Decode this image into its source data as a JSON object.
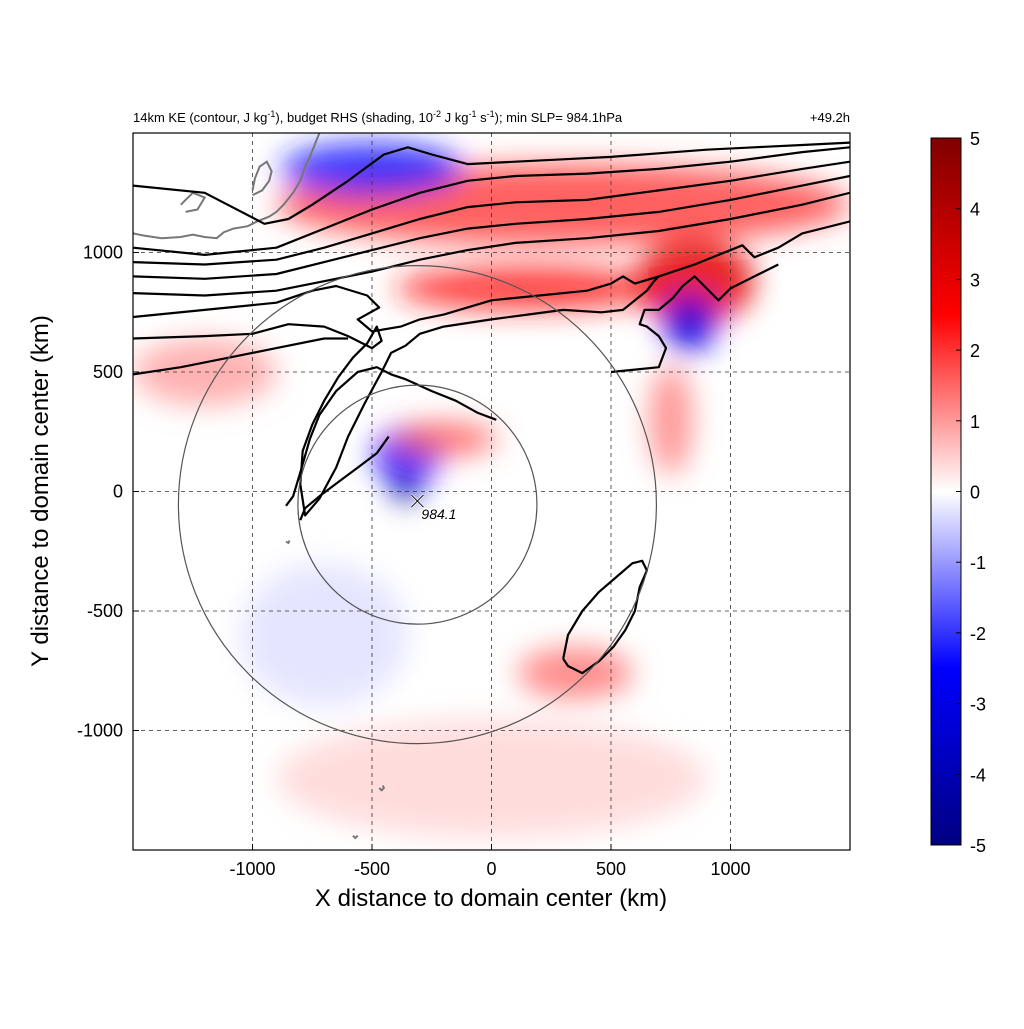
{
  "chart_data": {
    "type": "heatmap",
    "title_parts": {
      "a": "14km KE (contour, J kg",
      "a_sup": "-1",
      "b": "), budget RHS (shading, 10",
      "b_sup": "-2",
      "c": " J kg",
      "c_sup": "-1",
      "d": " s",
      "d_sup": "-1",
      "e": "); min SLP= 984.1hPa"
    },
    "time_label": "+49.2h",
    "xlabel": "X distance to domain center (km)",
    "ylabel": "Y distance to domain center (km)",
    "xlim": [
      -1500,
      1500
    ],
    "ylim": [
      -1500,
      1500
    ],
    "xticks": [
      -1000,
      -500,
      0,
      500,
      1000
    ],
    "yticks": [
      -1000,
      -500,
      0,
      500,
      1000
    ],
    "grid": true,
    "colorbar": {
      "range": [
        -5,
        5
      ],
      "ticks": [
        -5,
        -4,
        -3,
        -2,
        -1,
        0,
        1,
        2,
        3,
        4,
        5
      ],
      "colors": [
        "#000080",
        "#0000ff",
        "#ffffff",
        "#ff0000",
        "#800000"
      ]
    },
    "center_marker": {
      "x": -310,
      "y": -40,
      "label": "984.1"
    },
    "range_rings": [
      {
        "cx": -310,
        "cy": -55,
        "r": 500
      },
      {
        "cx": -310,
        "cy": -55,
        "r": 1000
      }
    ],
    "shading_features": [
      {
        "x": 300,
        "y": 1200,
        "rx": 1200,
        "ry": 170,
        "v": 1.8
      },
      {
        "x": -500,
        "y": 1350,
        "rx": 380,
        "ry": 110,
        "v": -2.2
      },
      {
        "x": 150,
        "y": 850,
        "rx": 550,
        "ry": 90,
        "v": 2.2
      },
      {
        "x": 850,
        "y": 880,
        "rx": 250,
        "ry": 180,
        "v": 3.0
      },
      {
        "x": 830,
        "y": 700,
        "rx": 110,
        "ry": 120,
        "v": -3.0
      },
      {
        "x": -350,
        "y": 150,
        "rx": 140,
        "ry": 120,
        "v": -2.5
      },
      {
        "x": -200,
        "y": 220,
        "rx": 220,
        "ry": 70,
        "v": 1.6
      },
      {
        "x": -360,
        "y": 10,
        "rx": 55,
        "ry": 55,
        "v": -4.5
      },
      {
        "x": 350,
        "y": -760,
        "rx": 240,
        "ry": 110,
        "v": 1.3
      },
      {
        "x": 750,
        "y": 300,
        "rx": 90,
        "ry": 230,
        "v": 1.2
      },
      {
        "x": -1200,
        "y": 500,
        "rx": 300,
        "ry": 140,
        "v": 0.9
      },
      {
        "x": 0,
        "y": -1200,
        "rx": 900,
        "ry": 250,
        "v": 0.4
      },
      {
        "x": -700,
        "y": -600,
        "rx": 350,
        "ry": 300,
        "v": -0.3
      }
    ],
    "contours": [
      [
        [
          -1500,
          1280
        ],
        [
          -1200,
          1250
        ],
        [
          -950,
          1120
        ],
        [
          -850,
          1140
        ],
        [
          -750,
          1200
        ],
        [
          -600,
          1300
        ],
        [
          -450,
          1410
        ],
        [
          -350,
          1440
        ],
        [
          -250,
          1410
        ],
        [
          -100,
          1370
        ],
        [
          100,
          1380
        ],
        [
          300,
          1390
        ],
        [
          500,
          1400
        ],
        [
          700,
          1415
        ],
        [
          900,
          1430
        ],
        [
          1100,
          1440
        ],
        [
          1300,
          1450
        ],
        [
          1500,
          1460
        ]
      ],
      [
        [
          -1500,
          1020
        ],
        [
          -1200,
          990
        ],
        [
          -900,
          1020
        ],
        [
          -700,
          1100
        ],
        [
          -500,
          1180
        ],
        [
          -300,
          1250
        ],
        [
          -100,
          1300
        ],
        [
          100,
          1320
        ],
        [
          400,
          1330
        ],
        [
          700,
          1350
        ],
        [
          1000,
          1380
        ],
        [
          1300,
          1420
        ],
        [
          1500,
          1440
        ]
      ],
      [
        [
          -1500,
          960
        ],
        [
          -1200,
          950
        ],
        [
          -900,
          970
        ],
        [
          -700,
          1020
        ],
        [
          -500,
          1080
        ],
        [
          -300,
          1140
        ],
        [
          -100,
          1190
        ],
        [
          100,
          1210
        ],
        [
          400,
          1220
        ],
        [
          700,
          1260
        ],
        [
          1000,
          1300
        ],
        [
          1300,
          1350
        ],
        [
          1500,
          1380
        ]
      ],
      [
        [
          -1500,
          900
        ],
        [
          -1200,
          890
        ],
        [
          -900,
          910
        ],
        [
          -700,
          960
        ],
        [
          -500,
          1010
        ],
        [
          -300,
          1060
        ],
        [
          -100,
          1100
        ],
        [
          100,
          1120
        ],
        [
          400,
          1140
        ],
        [
          700,
          1170
        ],
        [
          1000,
          1220
        ],
        [
          1300,
          1280
        ],
        [
          1500,
          1320
        ]
      ],
      [
        [
          -1500,
          830
        ],
        [
          -1200,
          820
        ],
        [
          -900,
          840
        ],
        [
          -700,
          880
        ],
        [
          -500,
          920
        ],
        [
          -300,
          970
        ],
        [
          -100,
          1010
        ],
        [
          100,
          1040
        ],
        [
          400,
          1060
        ],
        [
          700,
          1090
        ],
        [
          1000,
          1140
        ],
        [
          1300,
          1200
        ],
        [
          1500,
          1250
        ]
      ],
      [
        [
          -1500,
          730
        ],
        [
          -1200,
          760
        ],
        [
          -900,
          790
        ],
        [
          -750,
          840
        ],
        [
          -650,
          860
        ],
        [
          -520,
          820
        ],
        [
          -470,
          770
        ],
        [
          -560,
          720
        ],
        [
          -500,
          670
        ],
        [
          -380,
          690
        ],
        [
          -300,
          720
        ],
        [
          -200,
          740
        ],
        [
          0,
          800
        ],
        [
          200,
          820
        ],
        [
          400,
          840
        ],
        [
          500,
          870
        ],
        [
          550,
          900
        ],
        [
          600,
          870
        ],
        [
          700,
          900
        ],
        [
          850,
          950
        ],
        [
          950,
          990
        ],
        [
          1050,
          1030
        ],
        [
          1100,
          980
        ],
        [
          1200,
          1020
        ],
        [
          1300,
          1080
        ],
        [
          1500,
          1130
        ]
      ],
      [
        [
          -1500,
          640
        ],
        [
          -1200,
          650
        ],
        [
          -1000,
          660
        ],
        [
          -850,
          700
        ],
        [
          -700,
          690
        ],
        [
          -600,
          650
        ],
        [
          -500,
          600
        ],
        [
          -460,
          630
        ],
        [
          -480,
          690
        ],
        [
          -520,
          620
        ],
        [
          -580,
          560
        ],
        [
          -640,
          480
        ],
        [
          -700,
          380
        ],
        [
          -750,
          280
        ],
        [
          -790,
          170
        ],
        [
          -800,
          30
        ],
        [
          -780,
          -100
        ],
        [
          -720,
          -30
        ],
        [
          -650,
          100
        ],
        [
          -600,
          230
        ],
        [
          -530,
          370
        ],
        [
          -460,
          500
        ],
        [
          -430,
          560
        ],
        [
          -420,
          580
        ],
        [
          -360,
          610
        ],
        [
          -300,
          660
        ],
        [
          -200,
          690
        ],
        [
          0,
          720
        ],
        [
          150,
          740
        ],
        [
          300,
          760
        ],
        [
          460,
          750
        ],
        [
          550,
          760
        ],
        [
          600,
          800
        ],
        [
          650,
          840
        ],
        [
          680,
          880
        ],
        [
          700,
          900
        ]
      ],
      [
        [
          -1500,
          490
        ],
        [
          -1300,
          520
        ],
        [
          -1100,
          560
        ],
        [
          -900,
          600
        ],
        [
          -700,
          640
        ],
        [
          -600,
          640
        ]
      ],
      [
        [
          -860,
          -60
        ],
        [
          -830,
          -20
        ],
        [
          -800,
          80
        ],
        [
          -760,
          220
        ],
        [
          -720,
          320
        ],
        [
          -650,
          420
        ],
        [
          -560,
          500
        ],
        [
          -480,
          520
        ],
        [
          -420,
          490
        ],
        [
          -360,
          470
        ],
        [
          -250,
          420
        ],
        [
          -150,
          380
        ],
        [
          -60,
          330
        ],
        [
          20,
          300
        ]
      ],
      [
        [
          -800,
          -120
        ],
        [
          -780,
          -70
        ],
        [
          -720,
          -20
        ],
        [
          -640,
          40
        ],
        [
          -560,
          100
        ],
        [
          -480,
          160
        ],
        [
          -430,
          230
        ]
      ],
      [
        [
          300,
          -700
        ],
        [
          320,
          -600
        ],
        [
          380,
          -500
        ],
        [
          450,
          -420
        ],
        [
          520,
          -360
        ],
        [
          590,
          -300
        ],
        [
          630,
          -290
        ],
        [
          650,
          -330
        ],
        [
          620,
          -400
        ],
        [
          600,
          -500
        ],
        [
          560,
          -580
        ],
        [
          510,
          -650
        ],
        [
          450,
          -710
        ],
        [
          380,
          -760
        ],
        [
          320,
          -730
        ],
        [
          300,
          -700
        ]
      ],
      [
        [
          500,
          500
        ],
        [
          600,
          510
        ],
        [
          700,
          520
        ],
        [
          730,
          600
        ],
        [
          700,
          650
        ],
        [
          650,
          690
        ],
        [
          620,
          700
        ],
        [
          640,
          760
        ],
        [
          700,
          760
        ],
        [
          760,
          810
        ],
        [
          800,
          860
        ],
        [
          850,
          900
        ],
        [
          900,
          850
        ],
        [
          950,
          800
        ],
        [
          1000,
          850
        ],
        [
          1100,
          900
        ],
        [
          1200,
          950
        ]
      ]
    ],
    "coastlines": [
      [
        [
          -1500,
          1080
        ],
        [
          -1450,
          1070
        ],
        [
          -1380,
          1060
        ],
        [
          -1300,
          1065
        ],
        [
          -1250,
          1075
        ],
        [
          -1200,
          1065
        ],
        [
          -1150,
          1060
        ],
        [
          -1120,
          1085
        ],
        [
          -1080,
          1100
        ],
        [
          -1020,
          1110
        ],
        [
          -980,
          1130
        ],
        [
          -930,
          1150
        ],
        [
          -900,
          1170
        ],
        [
          -870,
          1200
        ],
        [
          -830,
          1250
        ],
        [
          -800,
          1300
        ],
        [
          -780,
          1360
        ],
        [
          -760,
          1400
        ],
        [
          -740,
          1450
        ],
        [
          -720,
          1500
        ]
      ],
      [
        [
          -1000,
          1240
        ],
        [
          -960,
          1260
        ],
        [
          -930,
          1300
        ],
        [
          -920,
          1340
        ],
        [
          -940,
          1380
        ],
        [
          -970,
          1360
        ],
        [
          -990,
          1310
        ],
        [
          -1000,
          1260
        ]
      ],
      [
        [
          -1300,
          1200
        ],
        [
          -1250,
          1250
        ],
        [
          -1200,
          1230
        ],
        [
          -1230,
          1180
        ],
        [
          -1280,
          1170
        ]
      ],
      [
        [
          -860,
          -210
        ],
        [
          -850,
          -215
        ],
        [
          -845,
          -205
        ]
      ],
      [
        [
          -470,
          -1240
        ],
        [
          -460,
          -1250
        ],
        [
          -450,
          -1240
        ],
        [
          -455,
          -1230
        ]
      ],
      [
        [
          -580,
          -1440
        ],
        [
          -570,
          -1450
        ],
        [
          -560,
          -1440
        ]
      ]
    ]
  },
  "icons": {
    "center_marker": "x-cross-icon"
  }
}
